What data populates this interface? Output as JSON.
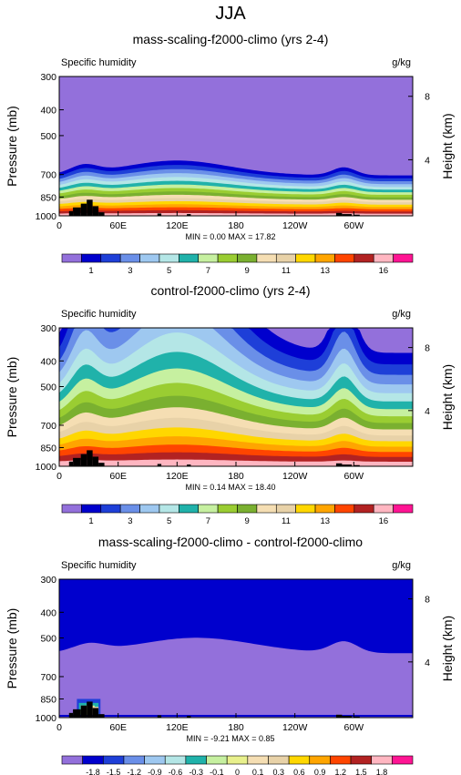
{
  "season": "JJA",
  "colors": {
    "background": "#ffffff",
    "fill": "#9370db",
    "terrain": "#000000"
  },
  "chart_data": [
    {
      "type": "contour",
      "title": "mass-scaling-f2000-climo (yrs 2-4)",
      "variable": "Specific humidity",
      "units": "g/kg",
      "ylabel": "Pressure (mb)",
      "ylabel_right": "Height (km)",
      "x_ticks": [
        "0",
        "60E",
        "120E",
        "180",
        "120W",
        "60W"
      ],
      "y_ticks": [
        "300",
        "400",
        "500",
        "700",
        "850",
        "1000"
      ],
      "right_ticks": [
        "8",
        "4"
      ],
      "stats": "MIN =  0.00   MAX = 17.82",
      "levels": [
        1,
        2,
        3,
        4,
        5,
        6,
        7,
        8,
        9,
        10,
        11,
        12,
        13,
        14,
        16
      ],
      "label_bar": [
        "1",
        "3",
        "5",
        "7",
        "9",
        "11",
        "13",
        "16"
      ],
      "palette": [
        "#9370db",
        "#0000cd",
        "#1e3fd8",
        "#6a8fe8",
        "#9ec8f0",
        "#b4e6e6",
        "#20b2aa",
        "#c6f0a0",
        "#9acd32",
        "#7ab030",
        "#f5deb3",
        "#e8d2a8",
        "#ffd700",
        "#ffa500",
        "#ff4500",
        "#b22222",
        "#ffb6c1",
        "#ff1493"
      ]
    },
    {
      "type": "contour",
      "title": "control-f2000-climo (yrs 2-4)",
      "variable": "Specific humidity",
      "units": "g/kg",
      "ylabel": "Pressure (mb)",
      "ylabel_right": "Height (km)",
      "x_ticks": [
        "0",
        "60E",
        "120E",
        "180",
        "120W",
        "60W"
      ],
      "y_ticks": [
        "300",
        "400",
        "500",
        "700",
        "850",
        "1000"
      ],
      "right_ticks": [
        "8",
        "4"
      ],
      "stats": "MIN =  0.14   MAX = 18.40",
      "levels": [
        1,
        2,
        3,
        4,
        5,
        6,
        7,
        8,
        9,
        10,
        11,
        12,
        13,
        14,
        16
      ],
      "label_bar": [
        "1",
        "3",
        "5",
        "7",
        "9",
        "11",
        "13",
        "16"
      ],
      "palette": [
        "#9370db",
        "#0000cd",
        "#1e3fd8",
        "#6a8fe8",
        "#9ec8f0",
        "#b4e6e6",
        "#20b2aa",
        "#c6f0a0",
        "#9acd32",
        "#7ab030",
        "#f5deb3",
        "#e8d2a8",
        "#ffd700",
        "#ffa500",
        "#ff4500",
        "#b22222",
        "#ffb6c1",
        "#ff1493"
      ]
    },
    {
      "type": "contour",
      "title": "mass-scaling-f2000-climo - control-f2000-climo",
      "variable": "Specific humidity",
      "units": "g/kg",
      "ylabel": "Pressure (mb)",
      "ylabel_right": "Height (km)",
      "x_ticks": [
        "0",
        "60E",
        "120E",
        "180",
        "120W",
        "60W"
      ],
      "y_ticks": [
        "300",
        "400",
        "500",
        "700",
        "850",
        "1000"
      ],
      "right_ticks": [
        "8",
        "4"
      ],
      "stats": "MIN = -9.21   MAX =  0.85",
      "levels": [
        -1.8,
        -1.5,
        -1.2,
        -0.9,
        -0.6,
        -0.3,
        -0.1,
        0,
        0.1,
        0.3,
        0.6,
        0.9,
        1.2,
        1.5,
        1.8
      ],
      "label_bar": [
        "-1.8",
        "-1.5",
        "-1.2",
        "-0.9",
        "-0.6",
        "-0.3",
        "-0.1",
        "0",
        "0.1",
        "0.3",
        "0.6",
        "0.9",
        "1.2",
        "1.5",
        "1.8"
      ],
      "palette": [
        "#9370db",
        "#0000cd",
        "#1e3fd8",
        "#6a8fe8",
        "#9ec8f0",
        "#b4e6e6",
        "#20b2aa",
        "#c6f0a0",
        "#e8f08c",
        "#f5deb3",
        "#e8d2a8",
        "#ffd700",
        "#ffa500",
        "#ff4500",
        "#b22222",
        "#ffb6c1",
        "#ff1493"
      ]
    }
  ]
}
